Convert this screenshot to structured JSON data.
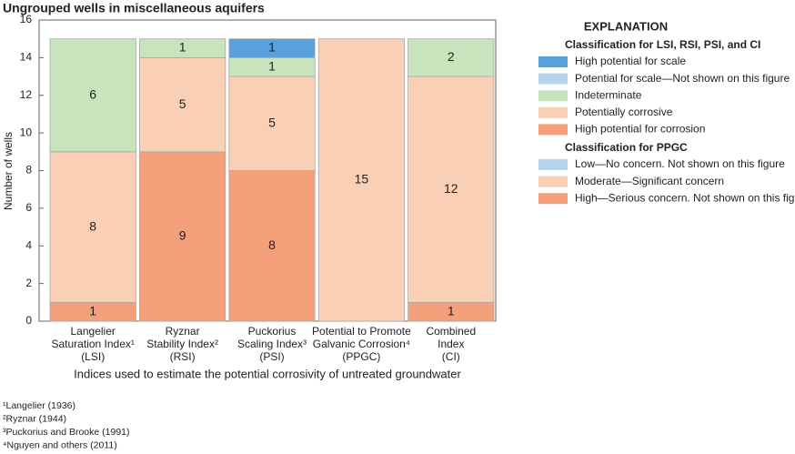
{
  "chart_data": {
    "type": "stacked-bar",
    "title": "Ungrouped wells in miscellaneous aquifers",
    "y_label": "Number of wells",
    "x_label": "Indices used to estimate the potential corrosivity of untreated groundwater",
    "categories": [
      [
        "Langelier",
        "Saturation Index¹",
        "(LSI)"
      ],
      [
        "Ryznar",
        "Stability Index²",
        "(RSI)"
      ],
      [
        "Puckorius",
        "Scaling Index³",
        "(PSI)"
      ],
      [
        "Potential to Promote",
        "Galvanic Corrosion⁴",
        "(PPGC)"
      ],
      [
        "Combined",
        "Index",
        "(CI)"
      ]
    ],
    "ylim": [
      0,
      16
    ],
    "yticks": [
      0,
      2,
      4,
      6,
      8,
      10,
      12,
      14,
      16
    ],
    "legend_title": "EXPLANATION",
    "groups": [
      {
        "title": "Classification for LSI, RSI, PSI, and CI",
        "series": [
          {
            "name": "High potential for scale",
            "color": "#5aa0da",
            "values": [
              null,
              null,
              1,
              null,
              null
            ]
          },
          {
            "name": "Potential for scale—Not shown on this figure",
            "color": "#b8d4ec",
            "values": [
              null,
              null,
              null,
              null,
              null
            ]
          },
          {
            "name": "Indeterminate",
            "color": "#c8e4bc",
            "values": [
              6,
              1,
              1,
              null,
              2
            ]
          },
          {
            "name": "Potentially corrosive",
            "color": "#f9cfb5",
            "values": [
              8,
              5,
              5,
              null,
              12
            ]
          },
          {
            "name": "High potential for corrosion",
            "color": "#f4a07a",
            "values": [
              1,
              9,
              8,
              null,
              1
            ]
          }
        ]
      },
      {
        "title": "Classification for PPGC",
        "series": [
          {
            "name": "Low—No concern. Not shown on this figure",
            "color": "#b8d4ec",
            "values": [
              null,
              null,
              null,
              null,
              null
            ]
          },
          {
            "name": "Moderate—Significant concern",
            "color": "#f9cfb5",
            "values": [
              null,
              null,
              null,
              15,
              null
            ]
          },
          {
            "name": "High—Serious concern. Not shown on this figure",
            "color": "#f4a07a",
            "values": [
              null,
              null,
              null,
              null,
              null
            ]
          }
        ]
      }
    ],
    "footnotes": [
      "¹Langelier (1936)",
      "²Ryznar (1944)",
      "³Puckorius and Brooke (1991)",
      "⁴Nguyen and others (2011)"
    ]
  }
}
